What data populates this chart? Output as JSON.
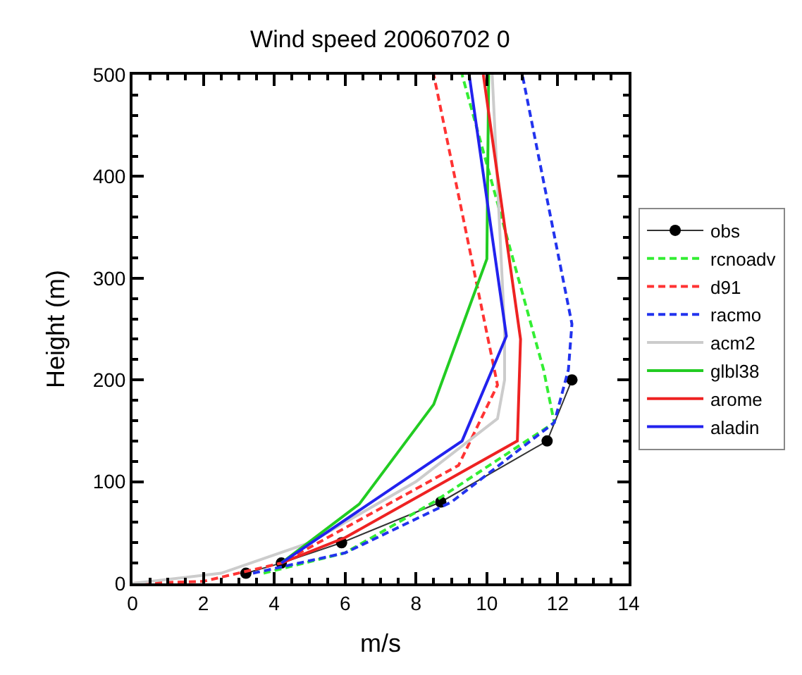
{
  "chart_data": {
    "type": "line",
    "title": "Wind speed 20060702 0",
    "xlabel": "m/s",
    "ylabel": "Height (m)",
    "xlim": [
      0,
      14
    ],
    "xticks": [
      0,
      2,
      4,
      6,
      8,
      10,
      12,
      14
    ],
    "ylim": [
      0,
      500
    ],
    "yticks": [
      0,
      100,
      200,
      300,
      400,
      500
    ],
    "grid": false,
    "legend": "right",
    "marker": "none",
    "series": [
      {
        "name": "obs",
        "color": "#333333",
        "line_style": "solid",
        "marker": "circle",
        "x": [
          3.2,
          4.2,
          5.9,
          8.7,
          11.7,
          12.4
        ],
        "values": [
          10,
          20,
          40,
          80,
          140,
          200
        ]
      },
      {
        "name": "rcnoadv",
        "color": "#33ee33",
        "line_style": "dashed",
        "x": [
          3.7,
          6,
          8.5,
          11.9,
          11.6,
          9.3
        ],
        "values": [
          10,
          30,
          80,
          158,
          210,
          500
        ]
      },
      {
        "name": "d91",
        "color": "#ff3333",
        "line_style": "dashed",
        "x": [
          0,
          2,
          4.2,
          9.2,
          10.3,
          8.5
        ],
        "values": [
          0,
          2,
          20,
          116,
          195,
          500
        ]
      },
      {
        "name": "racmo",
        "color": "#2233ee",
        "line_style": "dashed",
        "x": [
          3.4,
          6,
          9,
          11.9,
          12.3,
          12.4,
          11.0
        ],
        "values": [
          10,
          30,
          80,
          158,
          210,
          255,
          500
        ]
      },
      {
        "name": "acm2",
        "color": "#cccccc",
        "line_style": "solid",
        "x": [
          0,
          2.5,
          5,
          8,
          10.3,
          10.5,
          10.5,
          10.15
        ],
        "values": [
          0,
          10,
          40,
          100,
          162,
          200,
          250,
          500
        ]
      },
      {
        "name": "glbl38",
        "color": "#22cc22",
        "line_style": "solid",
        "x": [
          4.2,
          6.4,
          8.5,
          10,
          10.05
        ],
        "values": [
          20,
          78,
          176,
          319,
          500
        ]
      },
      {
        "name": "arome",
        "color": "#ee2222",
        "line_style": "solid",
        "x": [
          4.2,
          6,
          10.86,
          10.95,
          9.9
        ],
        "values": [
          20,
          45,
          140,
          240,
          500
        ]
      },
      {
        "name": "aladin",
        "color": "#2222ee",
        "line_style": "solid",
        "x": [
          4.2,
          9.3,
          10.55,
          9.5
        ],
        "values": [
          20,
          140,
          243,
          500
        ]
      }
    ]
  }
}
